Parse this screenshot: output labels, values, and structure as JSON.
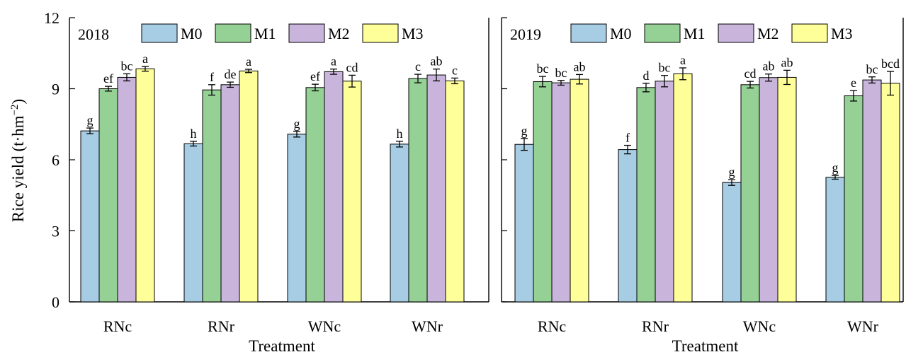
{
  "y_axis_label": "Rice yield (t·hm⁻²)",
  "colors": {
    "M0": "#a6cde3",
    "M1": "#95d095",
    "M2": "#c9b5dc",
    "M3": "#ffff99"
  },
  "chart_data": [
    {
      "type": "bar",
      "year_label": "2018",
      "xlabel": "Treatment",
      "ylabel": "Rice yield (t·hm⁻²)",
      "ylim": [
        0,
        12
      ],
      "yticks": [
        "0",
        "3",
        "6",
        "9",
        "12"
      ],
      "legend_position": "top",
      "categories": [
        "RNc",
        "RNr",
        "WNc",
        "WNr"
      ],
      "series": [
        {
          "name": "M0",
          "values": [
            7.22,
            6.68,
            7.08,
            6.66
          ],
          "errors": [
            0.12,
            0.1,
            0.12,
            0.12
          ],
          "letters": [
            "g",
            "h",
            "g",
            "h"
          ]
        },
        {
          "name": "M1",
          "values": [
            9.0,
            8.95,
            9.05,
            9.43
          ],
          "errors": [
            0.1,
            0.22,
            0.14,
            0.18
          ],
          "letters": [
            "ef",
            "f",
            "ef",
            "c"
          ]
        },
        {
          "name": "M2",
          "values": [
            9.48,
            9.17,
            9.72,
            9.58
          ],
          "errors": [
            0.15,
            0.11,
            0.11,
            0.25
          ],
          "letters": [
            "bc",
            "de",
            "a",
            "ab"
          ]
        },
        {
          "name": "M3",
          "values": [
            9.84,
            9.75,
            9.32,
            9.33
          ],
          "errors": [
            0.1,
            0.07,
            0.25,
            0.12
          ],
          "letters": [
            "a",
            "a",
            "cd",
            "c"
          ]
        }
      ]
    },
    {
      "type": "bar",
      "year_label": "2019",
      "xlabel": "Treatment",
      "ylabel": "",
      "ylim": [
        0,
        12
      ],
      "yticks": [],
      "legend_position": "top",
      "categories": [
        "RNc",
        "RNr",
        "WNc",
        "WNr"
      ],
      "series": [
        {
          "name": "M0",
          "values": [
            6.65,
            6.43,
            5.04,
            5.26
          ],
          "errors": [
            0.25,
            0.18,
            0.12,
            0.08
          ],
          "letters": [
            "g",
            "f",
            "g",
            "g"
          ]
        },
        {
          "name": "M1",
          "values": [
            9.3,
            9.05,
            9.17,
            8.7
          ],
          "errors": [
            0.22,
            0.18,
            0.14,
            0.22
          ],
          "letters": [
            "bc",
            "d",
            "cd",
            "e"
          ]
        },
        {
          "name": "M2",
          "values": [
            9.25,
            9.32,
            9.47,
            9.37
          ],
          "errors": [
            0.1,
            0.24,
            0.15,
            0.13
          ],
          "letters": [
            "bc",
            "bc",
            "ab",
            "bc"
          ]
        },
        {
          "name": "M3",
          "values": [
            9.4,
            9.63,
            9.48,
            9.23
          ],
          "errors": [
            0.2,
            0.25,
            0.3,
            0.5
          ],
          "letters": [
            "ab",
            "a",
            "ab",
            "bcd"
          ]
        }
      ]
    }
  ]
}
